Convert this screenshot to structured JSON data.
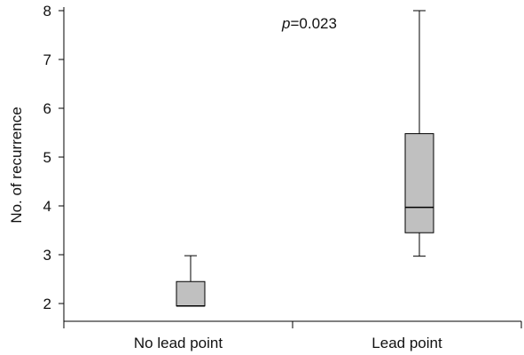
{
  "chart_data": {
    "type": "box",
    "title": "",
    "xlabel": "",
    "ylabel": "No. of recurrence",
    "ylim": [
      2,
      8
    ],
    "yticks": [
      2,
      3,
      4,
      5,
      6,
      7,
      8
    ],
    "grid": false,
    "annotation": {
      "prefix": "p",
      "rest": "=0.023"
    },
    "categories": [
      "No lead point",
      "Lead point"
    ],
    "boxes": [
      {
        "category": "No lead point",
        "min": 1.95,
        "q1": 1.95,
        "median": 1.95,
        "q3": 2.45,
        "max": 2.98
      },
      {
        "category": "Lead point",
        "min": 2.97,
        "q1": 3.45,
        "median": 3.97,
        "q3": 5.48,
        "max": 8.0
      }
    ],
    "colors": {
      "box_fill": "#c0c0c0",
      "stroke": "#000000"
    }
  }
}
